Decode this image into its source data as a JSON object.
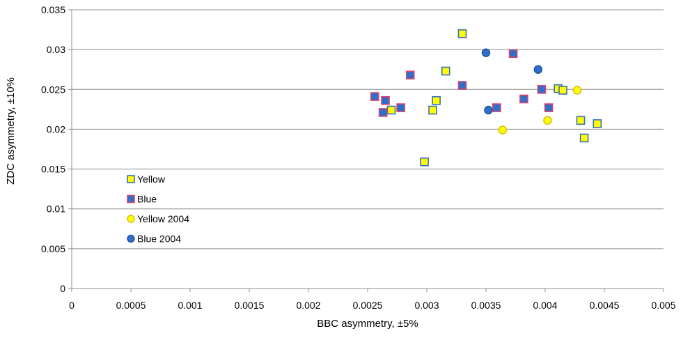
{
  "chart_data": {
    "type": "scatter",
    "title": "",
    "xlabel": "BBC asymmetry,  ±5%",
    "ylabel": "ZDC asymmetry,  ±10%",
    "xlim": [
      0,
      0.005
    ],
    "ylim": [
      0,
      0.035
    ],
    "x_ticks": [
      "0",
      "0.0005",
      "0.001",
      "0.0015",
      "0.002",
      "0.0025",
      "0.003",
      "0.0035",
      "0.004",
      "0.0045",
      "0.005"
    ],
    "y_ticks": [
      "0",
      "0.005",
      "0.01",
      "0.015",
      "0.02",
      "0.025",
      "0.03",
      "0.035"
    ],
    "grid": "horizontal",
    "legend_position": "inside-left",
    "series": [
      {
        "name": "Yellow",
        "marker": "square",
        "fill": "#ffff00",
        "stroke": "#3a6fb8",
        "points": [
          [
            0.0027,
            0.0224
          ],
          [
            0.00298,
            0.0159
          ],
          [
            0.00305,
            0.0224
          ],
          [
            0.00308,
            0.0236
          ],
          [
            0.00316,
            0.0273
          ],
          [
            0.0033,
            0.032
          ],
          [
            0.00411,
            0.0251
          ],
          [
            0.00415,
            0.0249
          ],
          [
            0.0043,
            0.0211
          ],
          [
            0.00433,
            0.0189
          ],
          [
            0.00444,
            0.0207
          ]
        ]
      },
      {
        "name": "Blue",
        "marker": "square",
        "fill": "#2e6fc9",
        "stroke": "#e0406e",
        "points": [
          [
            0.00256,
            0.0241
          ],
          [
            0.00263,
            0.0221
          ],
          [
            0.00265,
            0.0236
          ],
          [
            0.00278,
            0.0227
          ],
          [
            0.00286,
            0.0268
          ],
          [
            0.0033,
            0.0255
          ],
          [
            0.00359,
            0.0227
          ],
          [
            0.00373,
            0.0295
          ],
          [
            0.00382,
            0.0238
          ],
          [
            0.00397,
            0.025
          ],
          [
            0.00403,
            0.0227
          ]
        ]
      },
      {
        "name": "Yellow 2004",
        "marker": "circle",
        "fill": "#ffff00",
        "stroke": "#d4b800",
        "points": [
          [
            0.00364,
            0.0199
          ],
          [
            0.00402,
            0.0211
          ],
          [
            0.00427,
            0.0249
          ]
        ]
      },
      {
        "name": "Blue 2004",
        "marker": "circle",
        "fill": "#2e6fc9",
        "stroke": "#1d4f9a",
        "points": [
          [
            0.0035,
            0.0296
          ],
          [
            0.00352,
            0.0224
          ],
          [
            0.00394,
            0.0275
          ]
        ]
      }
    ]
  }
}
